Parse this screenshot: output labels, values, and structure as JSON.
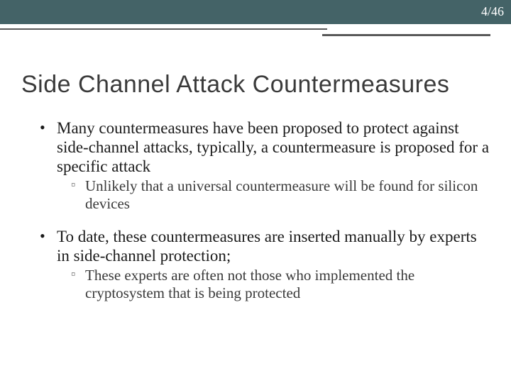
{
  "header": {
    "page_number": "4/46",
    "bar_color": "#446367",
    "text_color": "#ffffff"
  },
  "slide": {
    "title": "Side Channel Attack Countermeasures",
    "title_color": "#3a3a3a",
    "title_fontsize": 34,
    "body_fontsize": 23,
    "sub_fontsize": 21,
    "bullets": [
      {
        "text": "Many countermeasures have been proposed to protect against side-channel attacks, typically, a countermeasure is proposed for a specific attack",
        "sub": [
          "Unlikely that a universal countermeasure will be found for silicon devices"
        ]
      },
      {
        "text": "To date, these countermeasures are inserted manually by experts in side-channel protection;",
        "sub": [
          "These experts are often not those who implemented the cryptosystem that is being protected"
        ]
      }
    ]
  },
  "divider": {
    "line_color": "#595959"
  }
}
